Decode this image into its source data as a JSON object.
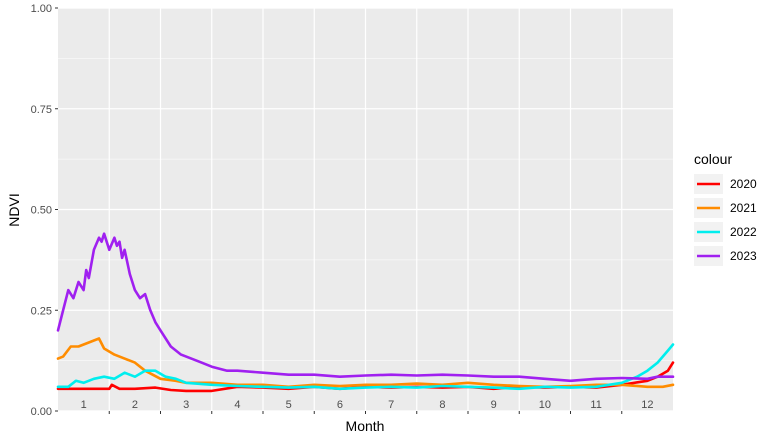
{
  "chart_data": {
    "type": "line",
    "xlabel": "Month",
    "ylabel": "NDVI",
    "x_ticks": [
      "1",
      "2",
      "3",
      "4",
      "5",
      "6",
      "7",
      "8",
      "9",
      "10",
      "11",
      "12"
    ],
    "y_ticks": [
      "0.00",
      "0.25",
      "0.50",
      "0.75",
      "1.00"
    ],
    "ylim": [
      0,
      1
    ],
    "xlim": [
      0.5,
      12.5
    ],
    "grid": true,
    "legend": {
      "title": "colour",
      "position": "right"
    },
    "series": [
      {
        "name": "2020",
        "color": "#ff0000",
        "x": [
          0.5,
          1.0,
          1.5,
          1.55,
          1.7,
          2.0,
          2.4,
          2.7,
          3.0,
          3.5,
          4.0,
          4.5,
          5.0,
          5.5,
          6.0,
          6.5,
          7.0,
          7.5,
          8.0,
          8.5,
          9.0,
          9.5,
          10.0,
          10.5,
          11.0,
          11.5,
          12.0,
          12.2,
          12.4,
          12.5
        ],
        "y": [
          0.055,
          0.055,
          0.055,
          0.065,
          0.055,
          0.055,
          0.058,
          0.052,
          0.05,
          0.05,
          0.06,
          0.058,
          0.055,
          0.06,
          0.055,
          0.06,
          0.058,
          0.06,
          0.058,
          0.06,
          0.055,
          0.06,
          0.058,
          0.06,
          0.058,
          0.065,
          0.075,
          0.085,
          0.1,
          0.12
        ]
      },
      {
        "name": "2021",
        "color": "#ff8c00",
        "x": [
          0.5,
          0.6,
          0.75,
          0.9,
          1.1,
          1.3,
          1.4,
          1.6,
          1.8,
          2.0,
          2.2,
          2.5,
          2.8,
          3.0,
          3.5,
          4.0,
          4.5,
          5.0,
          5.5,
          6.0,
          6.5,
          7.0,
          7.5,
          8.0,
          8.5,
          9.0,
          9.5,
          10.0,
          10.5,
          11.0,
          11.5,
          12.0,
          12.3,
          12.5
        ],
        "y": [
          0.13,
          0.135,
          0.16,
          0.16,
          0.17,
          0.18,
          0.155,
          0.14,
          0.13,
          0.12,
          0.1,
          0.08,
          0.075,
          0.07,
          0.07,
          0.065,
          0.065,
          0.06,
          0.065,
          0.062,
          0.065,
          0.065,
          0.068,
          0.065,
          0.07,
          0.065,
          0.062,
          0.06,
          0.062,
          0.065,
          0.065,
          0.06,
          0.06,
          0.065
        ]
      },
      {
        "name": "2022",
        "color": "#00eeee",
        "x": [
          0.5,
          0.7,
          0.85,
          1.0,
          1.2,
          1.4,
          1.6,
          1.8,
          2.0,
          2.2,
          2.4,
          2.6,
          2.8,
          3.0,
          3.5,
          4.0,
          4.5,
          5.0,
          5.5,
          6.0,
          6.5,
          7.0,
          7.5,
          8.0,
          8.5,
          9.0,
          9.5,
          10.0,
          10.5,
          11.0,
          11.5,
          11.8,
          12.0,
          12.2,
          12.4,
          12.5
        ],
        "y": [
          0.06,
          0.06,
          0.075,
          0.07,
          0.08,
          0.085,
          0.08,
          0.095,
          0.085,
          0.1,
          0.1,
          0.085,
          0.08,
          0.07,
          0.065,
          0.062,
          0.06,
          0.058,
          0.06,
          0.055,
          0.058,
          0.06,
          0.058,
          0.062,
          0.06,
          0.058,
          0.055,
          0.06,
          0.058,
          0.06,
          0.07,
          0.085,
          0.1,
          0.12,
          0.15,
          0.165
        ]
      },
      {
        "name": "2023",
        "color": "#a020f0",
        "x": [
          0.5,
          0.6,
          0.7,
          0.8,
          0.9,
          1.0,
          1.05,
          1.1,
          1.2,
          1.3,
          1.35,
          1.4,
          1.5,
          1.6,
          1.65,
          1.7,
          1.75,
          1.8,
          1.9,
          2.0,
          2.1,
          2.2,
          2.3,
          2.4,
          2.5,
          2.7,
          2.9,
          3.1,
          3.3,
          3.5,
          3.8,
          4.0,
          4.5,
          5.0,
          5.5,
          6.0,
          6.5,
          7.0,
          7.5,
          8.0,
          8.5,
          9.0,
          9.5,
          10.0,
          10.5,
          11.0,
          11.5,
          12.0,
          12.2,
          12.5
        ],
        "y": [
          0.2,
          0.25,
          0.3,
          0.28,
          0.32,
          0.3,
          0.35,
          0.33,
          0.4,
          0.43,
          0.42,
          0.44,
          0.4,
          0.43,
          0.41,
          0.42,
          0.38,
          0.4,
          0.34,
          0.3,
          0.28,
          0.29,
          0.25,
          0.22,
          0.2,
          0.16,
          0.14,
          0.13,
          0.12,
          0.11,
          0.1,
          0.1,
          0.095,
          0.09,
          0.09,
          0.085,
          0.088,
          0.09,
          0.088,
          0.09,
          0.088,
          0.085,
          0.085,
          0.08,
          0.075,
          0.08,
          0.082,
          0.08,
          0.085,
          0.085
        ]
      }
    ]
  }
}
